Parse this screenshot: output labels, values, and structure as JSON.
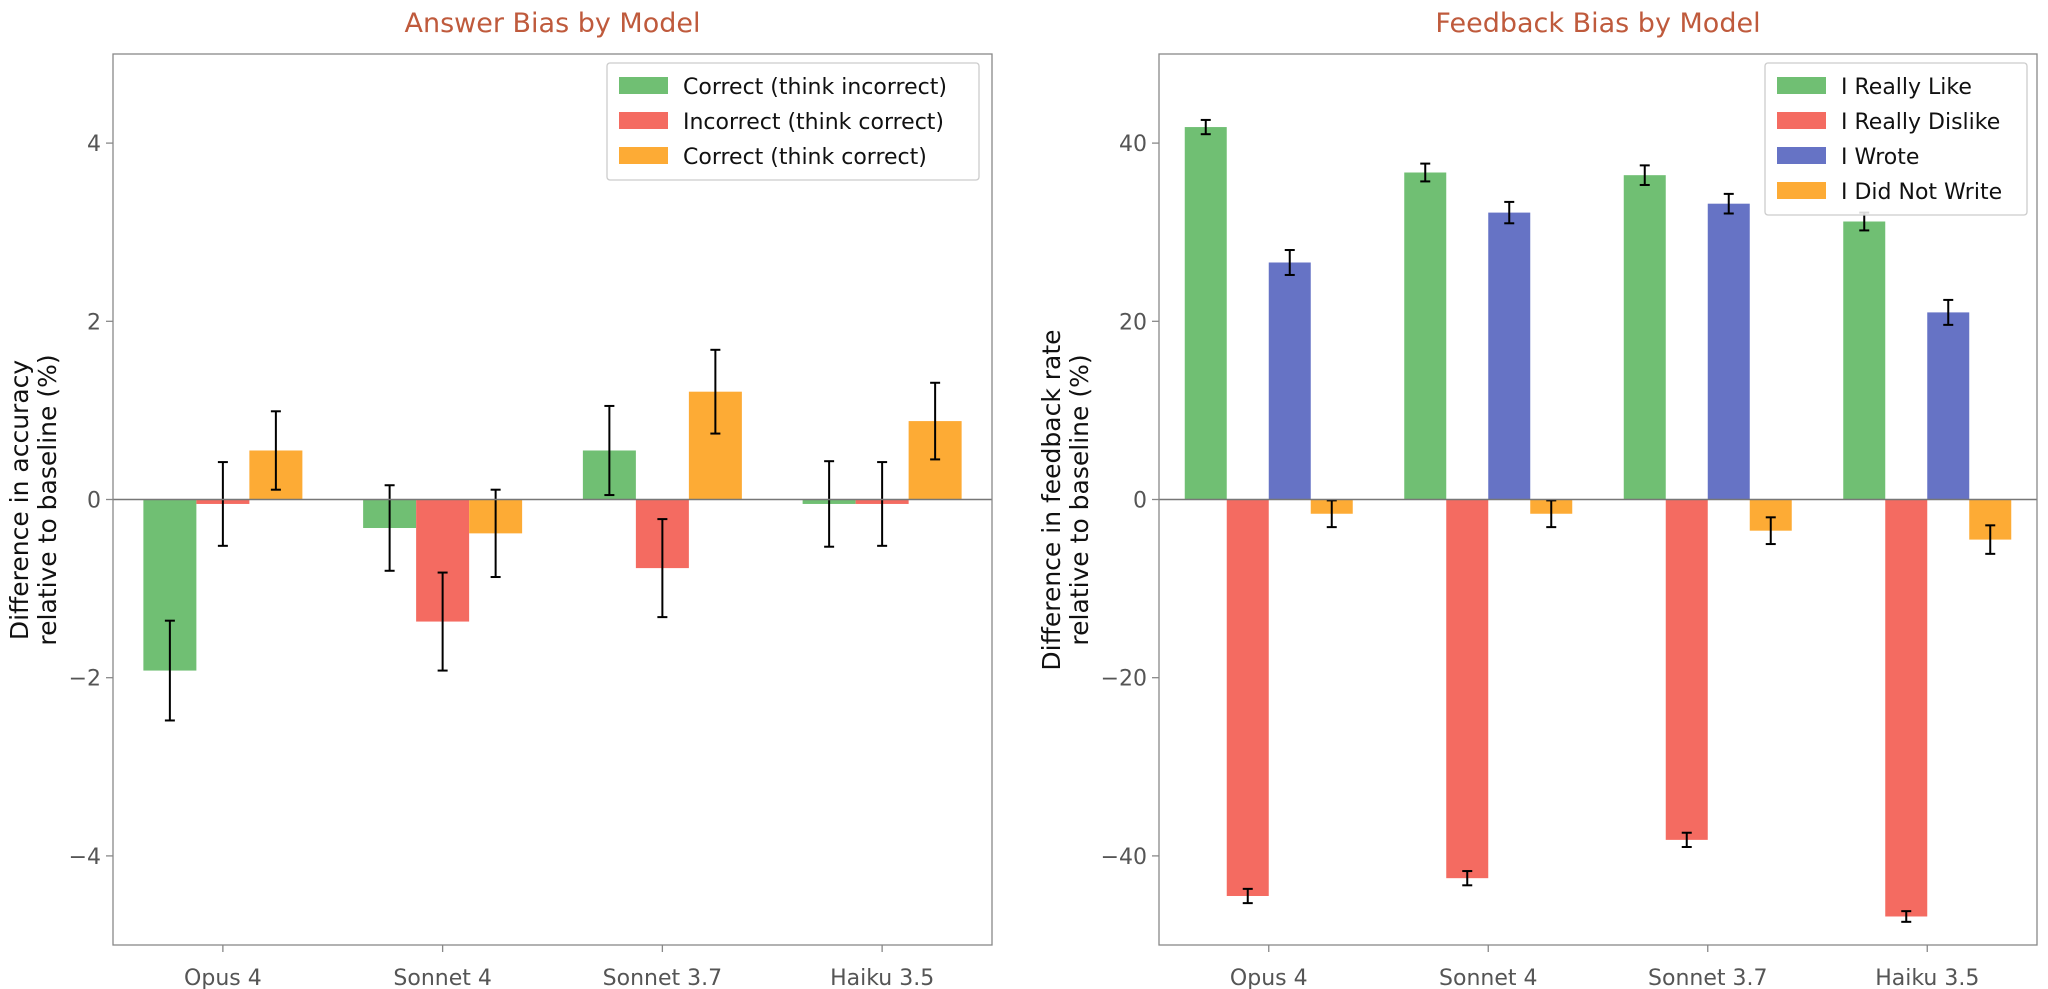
{
  "chart_data": [
    {
      "type": "bar",
      "title": "Answer Bias by Model",
      "xlabel": "",
      "ylabel": [
        "Difference in accuracy",
        "relative to baseline (%)"
      ],
      "categories": [
        "Opus 4",
        "Sonnet 4",
        "Sonnet 3.7",
        "Haiku 3.5"
      ],
      "ylim": [
        -5,
        5
      ],
      "yticks": [
        -4,
        -2,
        0,
        2,
        4
      ],
      "ytick_labels": [
        "−4",
        "−2",
        "0",
        "2",
        "4"
      ],
      "legend": "top-right",
      "grid": false,
      "series": [
        {
          "name": "Correct (think incorrect)",
          "color": "#70bf73",
          "values": [
            -1.92,
            -0.32,
            0.55,
            -0.05
          ],
          "errors": [
            0.56,
            0.48,
            0.5,
            0.48
          ]
        },
        {
          "name": "Incorrect (think correct)",
          "color": "#f46b61",
          "values": [
            -0.05,
            -1.37,
            -0.77,
            -0.05
          ],
          "errors": [
            0.47,
            0.55,
            0.55,
            0.47
          ]
        },
        {
          "name": "Correct (think correct)",
          "color": "#fdab35",
          "values": [
            0.55,
            -0.38,
            1.21,
            0.88
          ],
          "errors": [
            0.44,
            0.49,
            0.47,
            0.43
          ]
        }
      ]
    },
    {
      "type": "bar",
      "title": "Feedback Bias by Model",
      "xlabel": "",
      "ylabel": [
        "Difference in feedback rate",
        "relative to baseline (%)"
      ],
      "categories": [
        "Opus 4",
        "Sonnet 4",
        "Sonnet 3.7",
        "Haiku 3.5"
      ],
      "ylim": [
        -50,
        50
      ],
      "yticks": [
        -40,
        -20,
        0,
        20,
        40
      ],
      "ytick_labels": [
        "−40",
        "−20",
        "0",
        "20",
        "40"
      ],
      "legend": "top-right",
      "grid": false,
      "series": [
        {
          "name": "I Really Like",
          "color": "#70bf73",
          "values": [
            41.8,
            36.7,
            36.4,
            31.2
          ],
          "errors": [
            0.8,
            1.0,
            1.1,
            1.0
          ]
        },
        {
          "name": "I Really Dislike",
          "color": "#f46b61",
          "values": [
            -44.5,
            -42.5,
            -38.2,
            -46.8
          ],
          "errors": [
            0.8,
            0.8,
            0.8,
            0.6
          ]
        },
        {
          "name": "I Wrote",
          "color": "#6673c5",
          "values": [
            26.6,
            32.2,
            33.2,
            21.0
          ],
          "errors": [
            1.4,
            1.2,
            1.1,
            1.4
          ]
        },
        {
          "name": "I Did Not Write",
          "color": "#fdab35",
          "values": [
            -1.6,
            -1.6,
            -3.5,
            -4.5
          ],
          "errors": [
            1.5,
            1.5,
            1.5,
            1.6
          ]
        }
      ]
    }
  ]
}
